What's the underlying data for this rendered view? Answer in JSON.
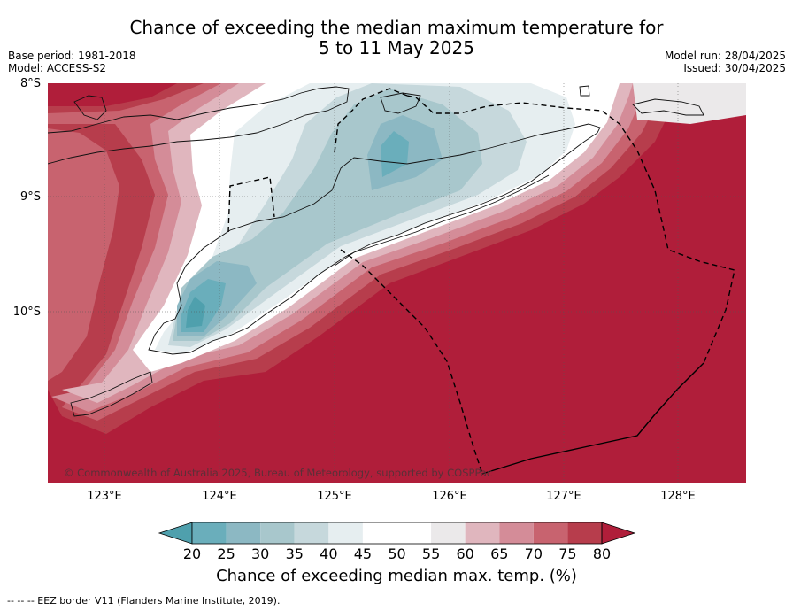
{
  "header": {
    "title_line1": "Chance of exceeding the median maximum temperature for",
    "title_line2": "5 to 11 May 2025",
    "base_period": "Base period: 1981-2018",
    "model": "Model: ACCESS-S2",
    "model_run": "Model run: 28/04/2025",
    "issued": "Issued: 30/04/2025"
  },
  "map": {
    "lat_labels": [
      "8°S",
      "9°S",
      "10°S"
    ],
    "lon_labels": [
      "123°E",
      "124°E",
      "125°E",
      "126°E",
      "127°E",
      "128°E"
    ],
    "copyright": "© Commonwealth of Australia 2025, Bureau of Meteorology, supported by COSPPac"
  },
  "colorbar": {
    "ticks": [
      "20",
      "25",
      "30",
      "35",
      "40",
      "45",
      "50",
      "55",
      "60",
      "65",
      "70",
      "75",
      "80"
    ],
    "colors": [
      "#4fa0ad",
      "#6aaebb",
      "#8cb8c3",
      "#a8c7cc",
      "#c6d8dc",
      "#e6eef0",
      "#ffffff",
      "#ffffff",
      "#ebe9ea",
      "#e0b6be",
      "#d48c98",
      "#c8636f",
      "#b73d4c",
      "#b01e3a"
    ],
    "title": "Chance of exceeding median max. temp. (%)"
  },
  "footnote": "--  --  -- EEZ border V11 (Flanders Marine Institute, 2019)."
}
